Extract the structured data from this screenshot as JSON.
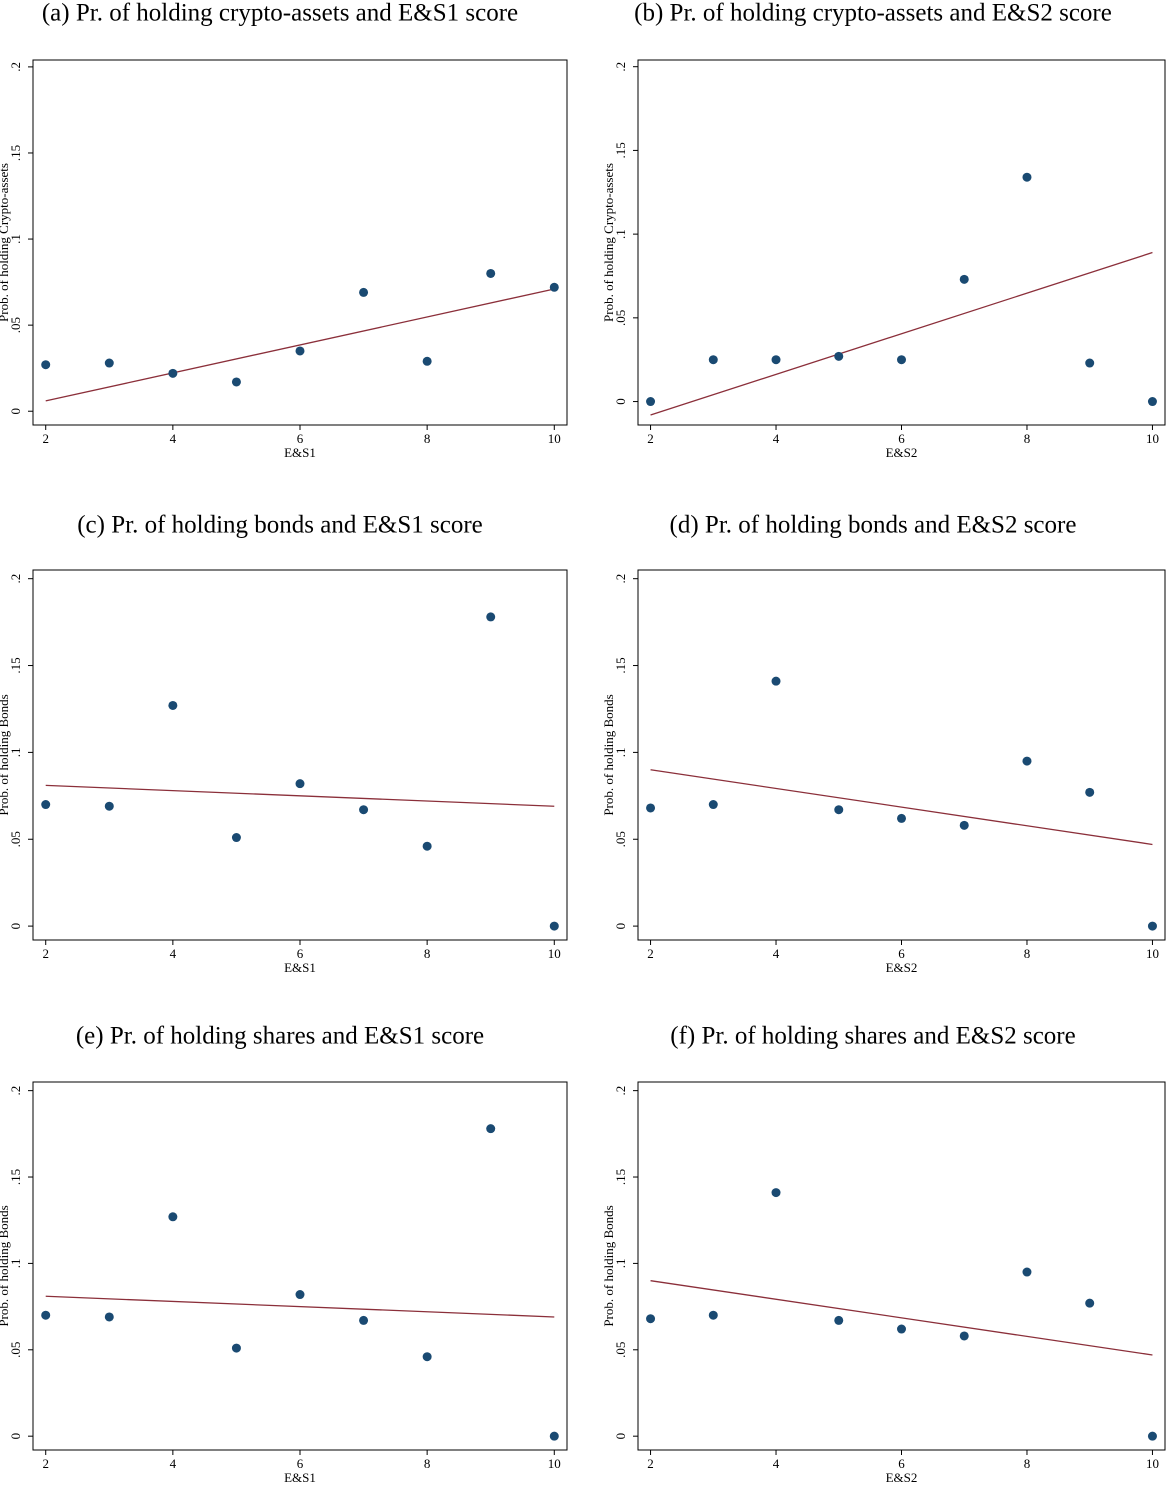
{
  "chart_data": [
    {
      "type": "scatter",
      "title": "(a) Pr. of holding crypto-assets and E&S1 score",
      "x_label": "E&S1",
      "y_label": "Prob. of holding Crypto-assets",
      "x": [
        2,
        3,
        4,
        5,
        6,
        7,
        8,
        9,
        10
      ],
      "values": [
        0.027,
        0.028,
        0.022,
        0.017,
        0.035,
        0.069,
        0.029,
        0.08,
        0.072
      ],
      "color": "#1a4a72",
      "fit": {
        "x": [
          2,
          10
        ],
        "values": [
          0.006,
          0.071
        ],
        "color": "#8b2f3a"
      },
      "xlim": [
        1.8,
        10.2
      ],
      "ylim": [
        -0.008,
        0.204
      ],
      "xticks": [
        2,
        4,
        6,
        8,
        10
      ],
      "yticks": [
        0,
        {
          "value": 0.05,
          "label": ".05"
        },
        {
          "value": 0.1,
          "label": ".1"
        },
        {
          "value": 0.15,
          "label": ".15"
        },
        {
          "value": 0.2,
          "label": ".2"
        }
      ]
    },
    {
      "type": "scatter",
      "title": "(b) Pr. of holding crypto-assets and E&S2 score",
      "x_label": "E&S2",
      "y_label": "Prob. of holding Crypto-assets",
      "x": [
        2,
        3,
        4,
        5,
        6,
        7,
        8,
        9,
        10
      ],
      "values": [
        0,
        0.025,
        0.025,
        0.027,
        0.025,
        0.073,
        0.134,
        0.023,
        0
      ],
      "color": "#1a4a72",
      "fit": {
        "x": [
          2,
          10
        ],
        "values": [
          -0.008,
          0.089
        ],
        "color": "#8b2f3a"
      },
      "xlim": [
        1.8,
        10.2
      ],
      "ylim": [
        -0.014,
        0.204
      ],
      "xticks": [
        2,
        4,
        6,
        8,
        10
      ],
      "yticks": [
        0,
        {
          "value": 0.05,
          "label": ".05"
        },
        {
          "value": 0.1,
          "label": ".1"
        },
        {
          "value": 0.15,
          "label": ".15"
        },
        {
          "value": 0.2,
          "label": ".2"
        }
      ]
    },
    {
      "type": "scatter",
      "title": "(c) Pr. of holding bonds and E&S1 score",
      "x_label": "E&S1",
      "y_label": "Prob. of holding Bonds",
      "x": [
        2,
        3,
        4,
        5,
        6,
        7,
        8,
        9,
        10
      ],
      "values": [
        0.07,
        0.069,
        0.127,
        0.051,
        0.082,
        0.067,
        0.046,
        0.178,
        0
      ],
      "color": "#1a4a72",
      "fit": {
        "x": [
          2,
          10
        ],
        "values": [
          0.081,
          0.069
        ],
        "color": "#8b2f3a"
      },
      "xlim": [
        1.8,
        10.2
      ],
      "ylim": [
        -0.008,
        0.205
      ],
      "xticks": [
        2,
        4,
        6,
        8,
        10
      ],
      "yticks": [
        0,
        {
          "value": 0.05,
          "label": ".05"
        },
        {
          "value": 0.1,
          "label": ".1"
        },
        {
          "value": 0.15,
          "label": ".15"
        },
        {
          "value": 0.2,
          "label": ".2"
        }
      ]
    },
    {
      "type": "scatter",
      "title": "(d) Pr. of holding bonds and E&S2 score",
      "x_label": "E&S2",
      "y_label": "Prob. of holding Bonds",
      "x": [
        2,
        3,
        4,
        5,
        6,
        7,
        8,
        9,
        10
      ],
      "values": [
        0.068,
        0.07,
        0.141,
        0.067,
        0.062,
        0.058,
        0.095,
        0.077,
        0
      ],
      "color": "#1a4a72",
      "fit": {
        "x": [
          2,
          10
        ],
        "values": [
          0.09,
          0.047
        ],
        "color": "#8b2f3a"
      },
      "xlim": [
        1.8,
        10.2
      ],
      "ylim": [
        -0.008,
        0.205
      ],
      "xticks": [
        2,
        4,
        6,
        8,
        10
      ],
      "yticks": [
        0,
        {
          "value": 0.05,
          "label": ".05"
        },
        {
          "value": 0.1,
          "label": ".1"
        },
        {
          "value": 0.15,
          "label": ".15"
        },
        {
          "value": 0.2,
          "label": ".2"
        }
      ]
    },
    {
      "type": "scatter",
      "title": "(e) Pr. of holding shares and E&S1 score",
      "x_label": "E&S1",
      "y_label": "Prob. of holding Bonds",
      "x": [
        2,
        3,
        4,
        5,
        6,
        7,
        8,
        9,
        10
      ],
      "values": [
        0.07,
        0.069,
        0.127,
        0.051,
        0.082,
        0.067,
        0.046,
        0.178,
        0
      ],
      "color": "#1a4a72",
      "fit": {
        "x": [
          2,
          10
        ],
        "values": [
          0.081,
          0.069
        ],
        "color": "#8b2f3a"
      },
      "xlim": [
        1.8,
        10.2
      ],
      "ylim": [
        -0.008,
        0.205
      ],
      "xticks": [
        2,
        4,
        6,
        8,
        10
      ],
      "yticks": [
        0,
        {
          "value": 0.05,
          "label": ".05"
        },
        {
          "value": 0.1,
          "label": ".1"
        },
        {
          "value": 0.15,
          "label": ".15"
        },
        {
          "value": 0.2,
          "label": ".2"
        }
      ]
    },
    {
      "type": "scatter",
      "title": "(f) Pr. of holding shares and E&S2 score",
      "x_label": "E&S2",
      "y_label": "Prob. of holding Bonds",
      "x": [
        2,
        3,
        4,
        5,
        6,
        7,
        8,
        9,
        10
      ],
      "values": [
        0.068,
        0.07,
        0.141,
        0.067,
        0.062,
        0.058,
        0.095,
        0.077,
        0
      ],
      "color": "#1a4a72",
      "fit": {
        "x": [
          2,
          10
        ],
        "values": [
          0.09,
          0.047
        ],
        "color": "#8b2f3a"
      },
      "xlim": [
        1.8,
        10.2
      ],
      "ylim": [
        -0.008,
        0.205
      ],
      "xticks": [
        2,
        4,
        6,
        8,
        10
      ],
      "yticks": [
        0,
        {
          "value": 0.05,
          "label": ".05"
        },
        {
          "value": 0.1,
          "label": ".1"
        },
        {
          "value": 0.15,
          "label": ".15"
        },
        {
          "value": 0.2,
          "label": ".2"
        }
      ]
    }
  ]
}
